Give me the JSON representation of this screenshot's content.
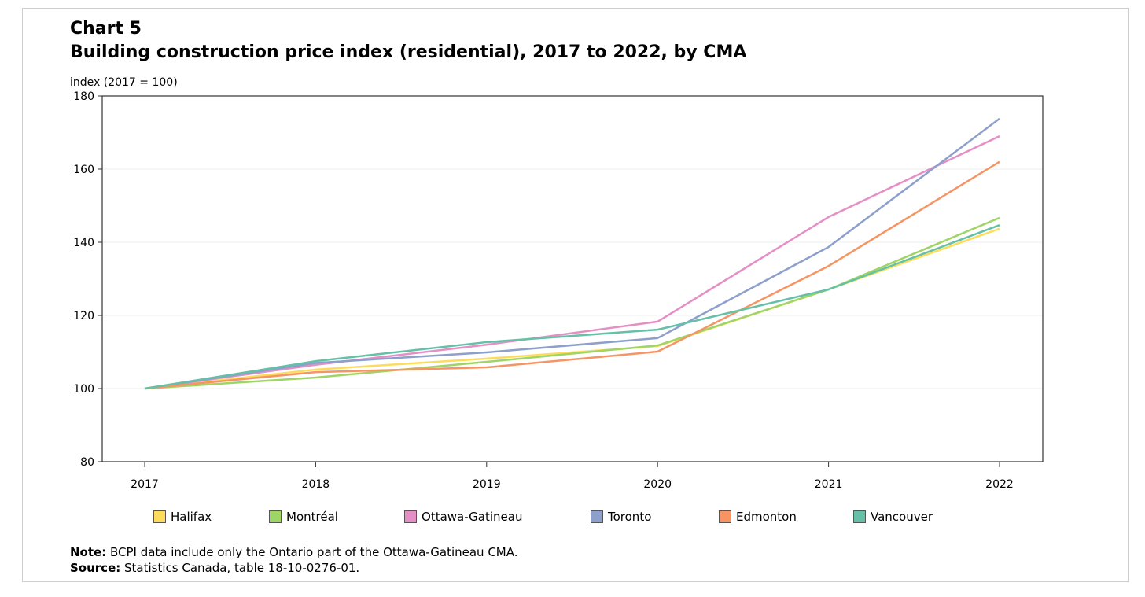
{
  "chart_data": {
    "type": "line",
    "title_line1": "Chart 5",
    "title_line2": "Building  construction  price  index (residential),  2017 to 2022, by CMA",
    "ylabel": "index (2017 = 100)",
    "xlabel": "",
    "ylim": [
      80,
      180
    ],
    "yticks": [
      80,
      100,
      120,
      140,
      160,
      180
    ],
    "grid": true,
    "legend_position": "bottom",
    "categories": [
      "2017",
      "2018",
      "2019",
      "2020",
      "2021",
      "2022"
    ],
    "series": [
      {
        "name": "Halifax",
        "color": "#fddc5c",
        "values": [
          100,
          105.2,
          108.2,
          111.6,
          127.1,
          143.7
        ]
      },
      {
        "name": "Montréal",
        "color": "#9fd466",
        "values": [
          100,
          103.0,
          107.3,
          111.8,
          127.1,
          146.7
        ]
      },
      {
        "name": "Ottawa-Gatineau",
        "color": "#e48fc5",
        "values": [
          100,
          106.5,
          112.0,
          118.3,
          146.9,
          169.0
        ]
      },
      {
        "name": "Toronto",
        "color": "#8d9fcb",
        "values": [
          100,
          107.0,
          109.9,
          113.8,
          138.7,
          173.8
        ]
      },
      {
        "name": "Edmonton",
        "color": "#f69463",
        "values": [
          100,
          104.5,
          105.8,
          110.1,
          133.5,
          162.0
        ]
      },
      {
        "name": "Vancouver",
        "color": "#64c0a6",
        "values": [
          100,
          107.5,
          112.7,
          116.1,
          127.1,
          144.7
        ]
      }
    ]
  },
  "notes": {
    "note_label": "Note:",
    "note_text": " BCPI data include only the Ontario part of the Ottawa-Gatineau CMA.",
    "source_label": "Source:",
    "source_text": " Statistics Canada, table 18-10-0276-01."
  }
}
